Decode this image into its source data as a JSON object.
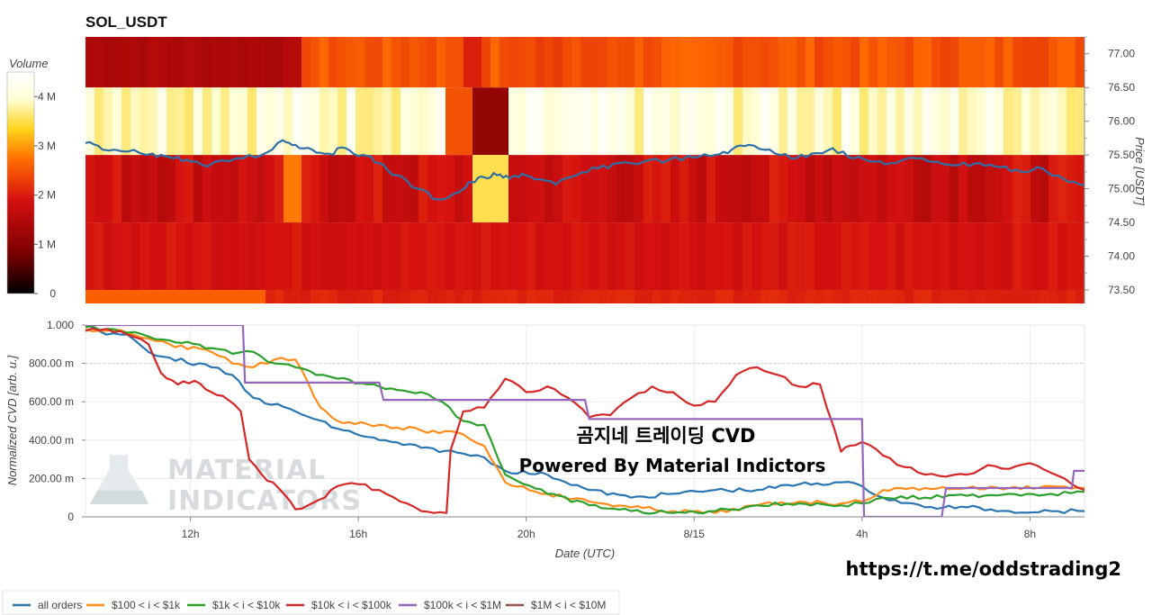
{
  "chart_data": [
    {
      "type": "heatmap",
      "title": "SOL_USDT",
      "colorbar": {
        "label": "Volume",
        "ticks": [
          "0",
          "1 M",
          "2 M",
          "3 M",
          "4 M"
        ],
        "range": [
          0,
          4500000
        ],
        "colors": [
          "#000000",
          "#7a0000",
          "#d41010",
          "#ff6a00",
          "#ffd21a",
          "#ffffd8",
          "#ffffff"
        ]
      },
      "ylabel": "Price [USDT]",
      "ylim": [
        73.3,
        77.25
      ],
      "yticks": [
        "77.00",
        "76.50",
        "76.00",
        "75.50",
        "75.00",
        "74.50",
        "74.00",
        "73.50"
      ],
      "bands": [
        {
          "from": 76.5,
          "to": 77.25,
          "volume": 1900000
        },
        {
          "from": 75.5,
          "to": 76.5,
          "volume": 3900000
        },
        {
          "from": 74.5,
          "to": 75.5,
          "volume": 1500000
        },
        {
          "from": 73.5,
          "to": 74.5,
          "volume": 1300000
        },
        {
          "from": 73.3,
          "to": 73.5,
          "volume": 2200000
        }
      ],
      "price_series": {
        "name": "price",
        "color": "#2f6fa8",
        "x": [
          0,
          0.4,
          1.0,
          1.6,
          2.0,
          2.4,
          2.9,
          3.6,
          4.2,
          4.7,
          5.0,
          5.4,
          5.8,
          6.2,
          6.6,
          7.0,
          7.4,
          7.9,
          8.4,
          8.9,
          9.2,
          9.5,
          9.8,
          10.1,
          10.4,
          10.8,
          11.2,
          11.7,
          12.2,
          12.7,
          13.3,
          13.9,
          14.5,
          15.0,
          15.4,
          15.8,
          16.3,
          16.8,
          17.3,
          17.8,
          18.3,
          18.8,
          19.3,
          19.8,
          20.3,
          20.8,
          21.3,
          21.8,
          22.3,
          22.8,
          23.3,
          23.8
        ],
        "y": [
          75.68,
          75.58,
          75.55,
          75.52,
          75.47,
          75.43,
          75.33,
          75.45,
          75.5,
          75.72,
          75.65,
          75.58,
          75.52,
          75.6,
          75.5,
          75.38,
          75.2,
          75.0,
          74.84,
          74.95,
          75.1,
          75.17,
          75.2,
          75.15,
          75.22,
          75.14,
          75.06,
          75.2,
          75.3,
          75.38,
          75.4,
          75.43,
          75.46,
          75.5,
          75.58,
          75.65,
          75.58,
          75.45,
          75.52,
          75.6,
          75.45,
          75.4,
          75.38,
          75.45,
          75.4,
          75.35,
          75.38,
          75.32,
          75.25,
          75.3,
          75.15,
          75.05
        ]
      }
    },
    {
      "type": "line",
      "xlabel": "Date (UTC)",
      "ylabel": "Normalized CVD [arb. u.]",
      "ylim": [
        0,
        1.0
      ],
      "yticks": [
        "0",
        "200.00 m",
        "400.00 m",
        "600.00 m",
        "800.00 m",
        "1.000"
      ],
      "xlim": [
        0,
        23.8
      ],
      "xticks": [
        {
          "x": 2.5,
          "label": "12h"
        },
        {
          "x": 6.5,
          "label": "16h"
        },
        {
          "x": 10.5,
          "label": "20h"
        },
        {
          "x": 14.5,
          "label": "8/15"
        },
        {
          "x": 18.5,
          "label": "4h"
        },
        {
          "x": 22.5,
          "label": "8h"
        }
      ],
      "series": [
        {
          "name": "all orders",
          "color": "#2a76b3",
          "x": [
            0,
            0.5,
            1.0,
            1.5,
            2.0,
            3.0,
            3.5,
            3.8,
            4.0,
            5.0,
            6.0,
            7.0,
            8.0,
            9.0,
            9.5,
            10.0,
            11.0,
            12.0,
            13.0,
            14.0,
            15.0,
            16.0,
            17.0,
            18.0,
            18.5,
            19.0,
            20.0,
            21.0,
            22.0,
            23.0,
            23.8
          ],
          "y": [
            1.0,
            0.95,
            0.95,
            0.86,
            0.83,
            0.78,
            0.74,
            0.66,
            0.62,
            0.55,
            0.46,
            0.4,
            0.36,
            0.33,
            0.31,
            0.24,
            0.22,
            0.14,
            0.1,
            0.12,
            0.14,
            0.14,
            0.17,
            0.18,
            0.16,
            0.1,
            0.05,
            0.05,
            0.03,
            0.03,
            0.03
          ]
        },
        {
          "name": "$100 < i < $1k",
          "color": "#ff8c1a",
          "x": [
            0,
            0.5,
            1.0,
            1.5,
            2.0,
            3.0,
            3.5,
            4.0,
            4.5,
            5.0,
            5.3,
            5.6,
            6.0,
            7.0,
            8.0,
            9.0,
            9.5,
            10.0,
            11.0,
            12.0,
            13.0,
            14.0,
            15.0,
            16.0,
            17.0,
            18.0,
            18.5,
            19.0,
            20.0,
            21.0,
            22.0,
            23.0,
            23.8
          ],
          "y": [
            0.98,
            0.97,
            0.96,
            0.93,
            0.9,
            0.86,
            0.8,
            0.78,
            0.82,
            0.82,
            0.7,
            0.57,
            0.5,
            0.48,
            0.45,
            0.43,
            0.37,
            0.18,
            0.12,
            0.08,
            0.05,
            0.03,
            0.02,
            0.06,
            0.08,
            0.07,
            0.08,
            0.14,
            0.15,
            0.15,
            0.15,
            0.16,
            0.15
          ]
        },
        {
          "name": "$1k < i < $10k",
          "color": "#2ca02c",
          "x": [
            0,
            0.5,
            1.0,
            1.5,
            2.0,
            3.0,
            3.5,
            4.0,
            4.5,
            5.0,
            5.5,
            6.0,
            7.0,
            8.0,
            8.5,
            9.0,
            9.5,
            10.0,
            11.0,
            12.0,
            13.0,
            14.0,
            15.0,
            16.0,
            17.0,
            18.0,
            18.5,
            19.0,
            20.0,
            21.0,
            22.0,
            23.0,
            23.8
          ],
          "y": [
            0.99,
            0.98,
            0.96,
            0.94,
            0.92,
            0.88,
            0.85,
            0.86,
            0.8,
            0.78,
            0.74,
            0.72,
            0.68,
            0.65,
            0.6,
            0.5,
            0.48,
            0.22,
            0.12,
            0.06,
            0.03,
            0.02,
            0.03,
            0.06,
            0.07,
            0.06,
            0.07,
            0.1,
            0.1,
            0.11,
            0.12,
            0.12,
            0.13
          ]
        },
        {
          "name": "$10k < i < $100k",
          "color": "#d62728",
          "x": [
            0,
            0.5,
            1.0,
            1.5,
            1.8,
            2.2,
            2.6,
            3.0,
            3.4,
            3.7,
            3.9,
            4.2,
            4.6,
            5.0,
            5.3,
            5.7,
            6.0,
            6.5,
            7.0,
            7.5,
            8.0,
            8.3,
            8.6,
            8.7,
            9.0,
            9.5,
            10.0,
            10.5,
            11.0,
            11.5,
            12.0,
            12.5,
            13.0,
            13.5,
            14.0,
            14.5,
            15.0,
            15.5,
            16.0,
            16.5,
            17.0,
            17.5,
            18.0,
            18.2,
            18.5,
            19.0,
            19.5,
            20.0,
            20.5,
            21.0,
            21.5,
            22.0,
            22.5,
            23.0,
            23.5,
            23.8
          ],
          "y": [
            0.97,
            0.98,
            0.95,
            0.9,
            0.75,
            0.69,
            0.71,
            0.65,
            0.61,
            0.55,
            0.3,
            0.22,
            0.15,
            0.04,
            0.06,
            0.1,
            0.16,
            0.17,
            0.14,
            0.08,
            0.03,
            0.02,
            0.02,
            0.35,
            0.55,
            0.57,
            0.72,
            0.65,
            0.68,
            0.62,
            0.52,
            0.53,
            0.62,
            0.68,
            0.65,
            0.58,
            0.6,
            0.74,
            0.78,
            0.74,
            0.68,
            0.69,
            0.34,
            0.37,
            0.39,
            0.32,
            0.26,
            0.22,
            0.21,
            0.22,
            0.27,
            0.25,
            0.28,
            0.23,
            0.17,
            0.14
          ]
        },
        {
          "name": "$100k < i < $1M",
          "color": "#9467bd",
          "x": [
            0,
            3.75,
            3.8,
            7.0,
            7.1,
            11.9,
            12.0,
            18.5,
            18.55,
            20.4,
            20.5,
            21.8,
            21.85,
            23.5,
            23.55,
            23.8
          ],
          "y": [
            1.0,
            1.0,
            0.7,
            0.7,
            0.61,
            0.61,
            0.51,
            0.51,
            0.0,
            0.0,
            0.15,
            0.15,
            0.15,
            0.15,
            0.24,
            0.24
          ]
        },
        {
          "name": "$1M < i < $10M",
          "color": "#8c564b",
          "x": [],
          "y": []
        }
      ]
    }
  ],
  "overlay": {
    "line1": "곰지네 트레이딩 CVD",
    "line2": "Powered By Material Indictors"
  },
  "watermark": {
    "line1": "MATERIAL",
    "line2": "INDICATORS"
  },
  "link": "https://t.me/oddstrading2",
  "legend": [
    {
      "label": "all orders",
      "color": "#2a76b3"
    },
    {
      "label": "$100 < i < $1k",
      "color": "#ff8c1a"
    },
    {
      "label": "$1k < i < $10k",
      "color": "#2ca02c"
    },
    {
      "label": "$10k < i < $100k",
      "color": "#d62728"
    },
    {
      "label": "$100k < i < $1M",
      "color": "#9467bd"
    },
    {
      "label": "$1M < i < $10M",
      "color": "#8c564b"
    }
  ]
}
